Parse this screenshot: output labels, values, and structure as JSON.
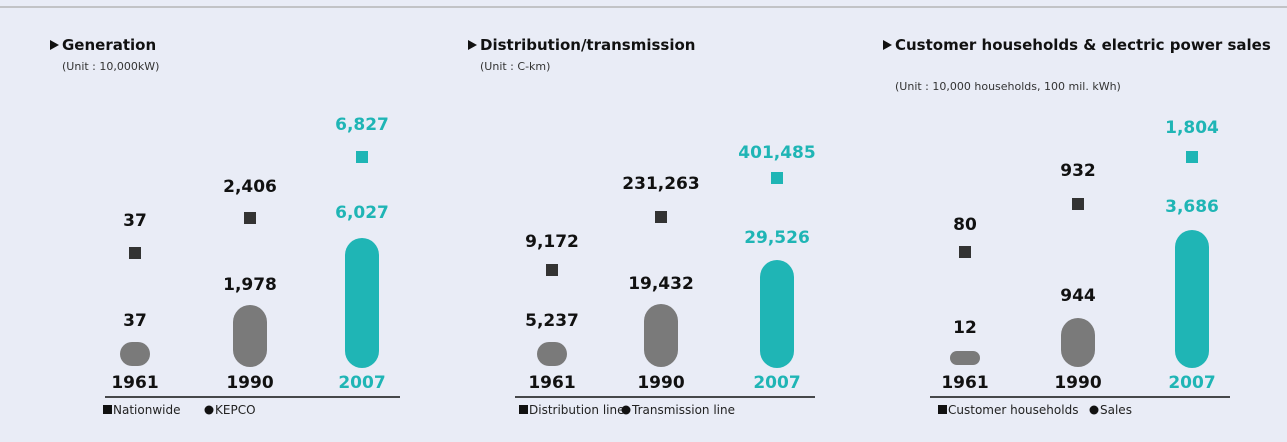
{
  "panels": [
    {
      "title": "Generation",
      "unit": "(Unit : 10,000kW)",
      "columns": [
        {
          "year": "1961",
          "top": "37",
          "bottom": "37"
        },
        {
          "year": "1990",
          "top": "2,406",
          "bottom": "1,978"
        },
        {
          "year": "2007",
          "top": "6,827",
          "bottom": "6,027"
        }
      ],
      "legend": [
        "Nationwide",
        "KEPCO"
      ]
    },
    {
      "title": "Distribution/transmission",
      "unit": "(Unit : C-km)",
      "columns": [
        {
          "year": "1961",
          "top": "9,172",
          "bottom": "5,237"
        },
        {
          "year": "1990",
          "top": "231,263",
          "bottom": "19,432"
        },
        {
          "year": "2007",
          "top": "401,485",
          "bottom": "29,526"
        }
      ],
      "legend": [
        "Distribution line",
        "Transmission line"
      ]
    },
    {
      "title": "Customer households & electric power sales",
      "unit": "(Unit : 10,000 households, 100 mil. kWh)",
      "columns": [
        {
          "year": "1961",
          "top": "80",
          "bottom": "12"
        },
        {
          "year": "1990",
          "top": "932",
          "bottom": "944"
        },
        {
          "year": "2007",
          "top": "1,804",
          "bottom": "3,686"
        }
      ],
      "legend": [
        "Customer households",
        "Sales"
      ]
    }
  ]
}
